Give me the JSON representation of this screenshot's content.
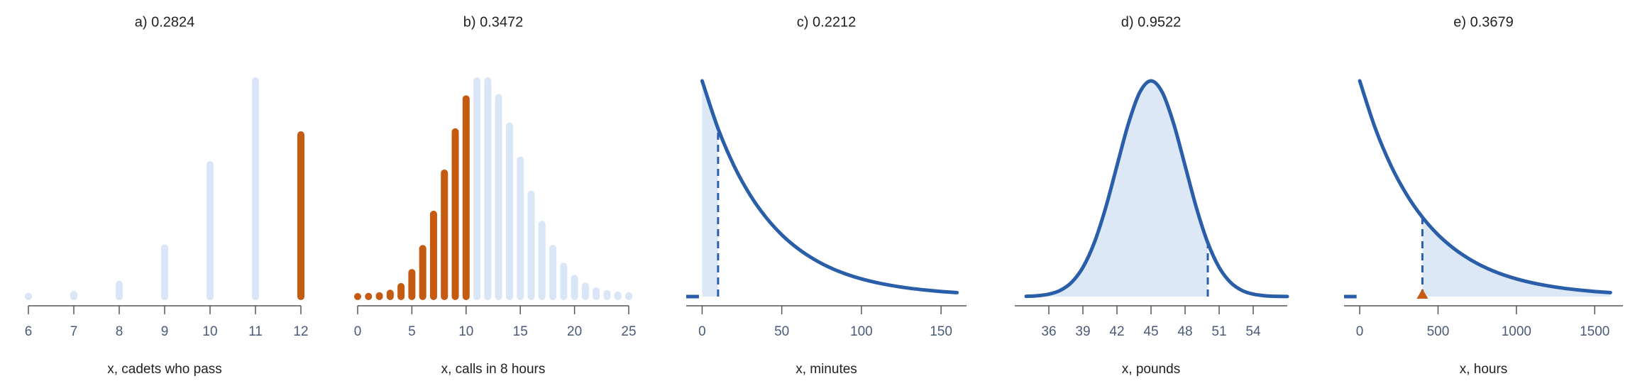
{
  "chart_data": [
    {
      "type": "bar",
      "title": "a) 0.2824",
      "xlabel": "x, cadets who pass",
      "x": [
        6,
        7,
        8,
        9,
        10,
        11,
        12
      ],
      "values": [
        0.0005,
        0.0038,
        0.0213,
        0.0852,
        0.2301,
        0.3766,
        0.2824
      ],
      "xlim": [
        6,
        12
      ],
      "xticks": [
        6,
        7,
        8,
        9,
        10,
        11,
        12
      ],
      "color": "#dae6f5",
      "highlight_range": [
        12,
        12
      ],
      "highlight_color": "#c55a11"
    },
    {
      "type": "bar",
      "title": "b) 0.3472",
      "xlabel": "x, calls in 8 hours",
      "x": [
        0,
        1,
        2,
        3,
        4,
        5,
        6,
        7,
        8,
        9,
        10,
        11,
        12,
        13,
        14,
        15,
        16,
        17,
        18,
        19,
        20,
        21,
        22,
        23,
        24,
        25
      ],
      "values": [
        6.1e-06,
        7.37e-05,
        0.000442,
        0.00177,
        0.00531,
        0.01274,
        0.02548,
        0.04368,
        0.06552,
        0.08736,
        0.10484,
        0.11437,
        0.11437,
        0.10557,
        0.09049,
        0.07239,
        0.05429,
        0.03832,
        0.02555,
        0.01614,
        0.00968,
        0.00553,
        0.00302,
        0.00157,
        0.00079,
        0.00038
      ],
      "xlim": [
        0,
        25
      ],
      "xticks": [
        0,
        5,
        10,
        15,
        20,
        25
      ],
      "color": "#dae6f5",
      "highlight_range": [
        0,
        10
      ],
      "highlight_color": "#c55a11"
    },
    {
      "type": "density",
      "title": "c) 0.2212",
      "xlabel": "x, minutes",
      "x": [
        0,
        10,
        20,
        30,
        40,
        50,
        60,
        70,
        80,
        90,
        100,
        110,
        120,
        130,
        140,
        150,
        160
      ],
      "values": [
        0.025,
        0.01947,
        0.01516,
        0.01181,
        0.0092,
        0.00716,
        0.00558,
        0.00435,
        0.00338,
        0.00263,
        0.00205,
        0.0016,
        0.00125,
        0.00097,
        0.00076,
        0.00059,
        0.00046
      ],
      "tail_x": [
        -10,
        -2
      ],
      "tail_values": [
        0,
        0
      ],
      "cutoff": 10,
      "shade": "left",
      "marker": false,
      "xlim": [
        -10,
        166
      ],
      "xticks": [
        0,
        50,
        100,
        150
      ],
      "color": "#2a5ea8",
      "fill": "#dce8f6"
    },
    {
      "type": "density",
      "title": "d) 0.9522",
      "xlabel": "x, pounds",
      "x": [
        34,
        35,
        36,
        37,
        38,
        39,
        40,
        41,
        42,
        43,
        44,
        45,
        46,
        47,
        48,
        49,
        50,
        51,
        52,
        53,
        54,
        55,
        56,
        57
      ],
      "values": [
        0.00016,
        0.00051,
        0.00148,
        0.0038,
        0.00874,
        0.018,
        0.03316,
        0.05467,
        0.08066,
        0.10648,
        0.1258,
        0.13298,
        0.1258,
        0.10648,
        0.08066,
        0.05467,
        0.03316,
        0.018,
        0.00874,
        0.0038,
        0.00148,
        0.00051,
        0.00016,
        4.46e-05
      ],
      "tail_x": [],
      "tail_values": [],
      "cutoff": 50,
      "shade": "left",
      "marker": false,
      "xlim": [
        33,
        57
      ],
      "xticks": [
        36,
        39,
        42,
        45,
        48,
        51,
        54
      ],
      "color": "#2a5ea8",
      "fill": "#dce8f6"
    },
    {
      "type": "density",
      "title": "e) 0.3679",
      "xlabel": "x, hours",
      "x": [
        0,
        100,
        200,
        300,
        400,
        500,
        600,
        700,
        800,
        900,
        1000,
        1100,
        1200,
        1300,
        1400,
        1500,
        1600
      ],
      "values": [
        0.0025,
        0.001947,
        0.001516,
        0.001181,
        0.00092,
        0.000716,
        0.000558,
        0.000435,
        0.000338,
        0.000263,
        0.000205,
        0.00016,
        0.000125,
        9.7e-05,
        7.6e-05,
        5.9e-05,
        4.6e-05
      ],
      "tail_x": [
        -100,
        -20
      ],
      "tail_values": [
        0,
        0
      ],
      "cutoff": 400,
      "shade": "right",
      "marker": true,
      "marker_color": "#c55a11",
      "xlim": [
        -100,
        1680
      ],
      "xticks": [
        0,
        500,
        1000,
        1500
      ],
      "color": "#2a5ea8",
      "fill": "#dce8f6"
    }
  ]
}
